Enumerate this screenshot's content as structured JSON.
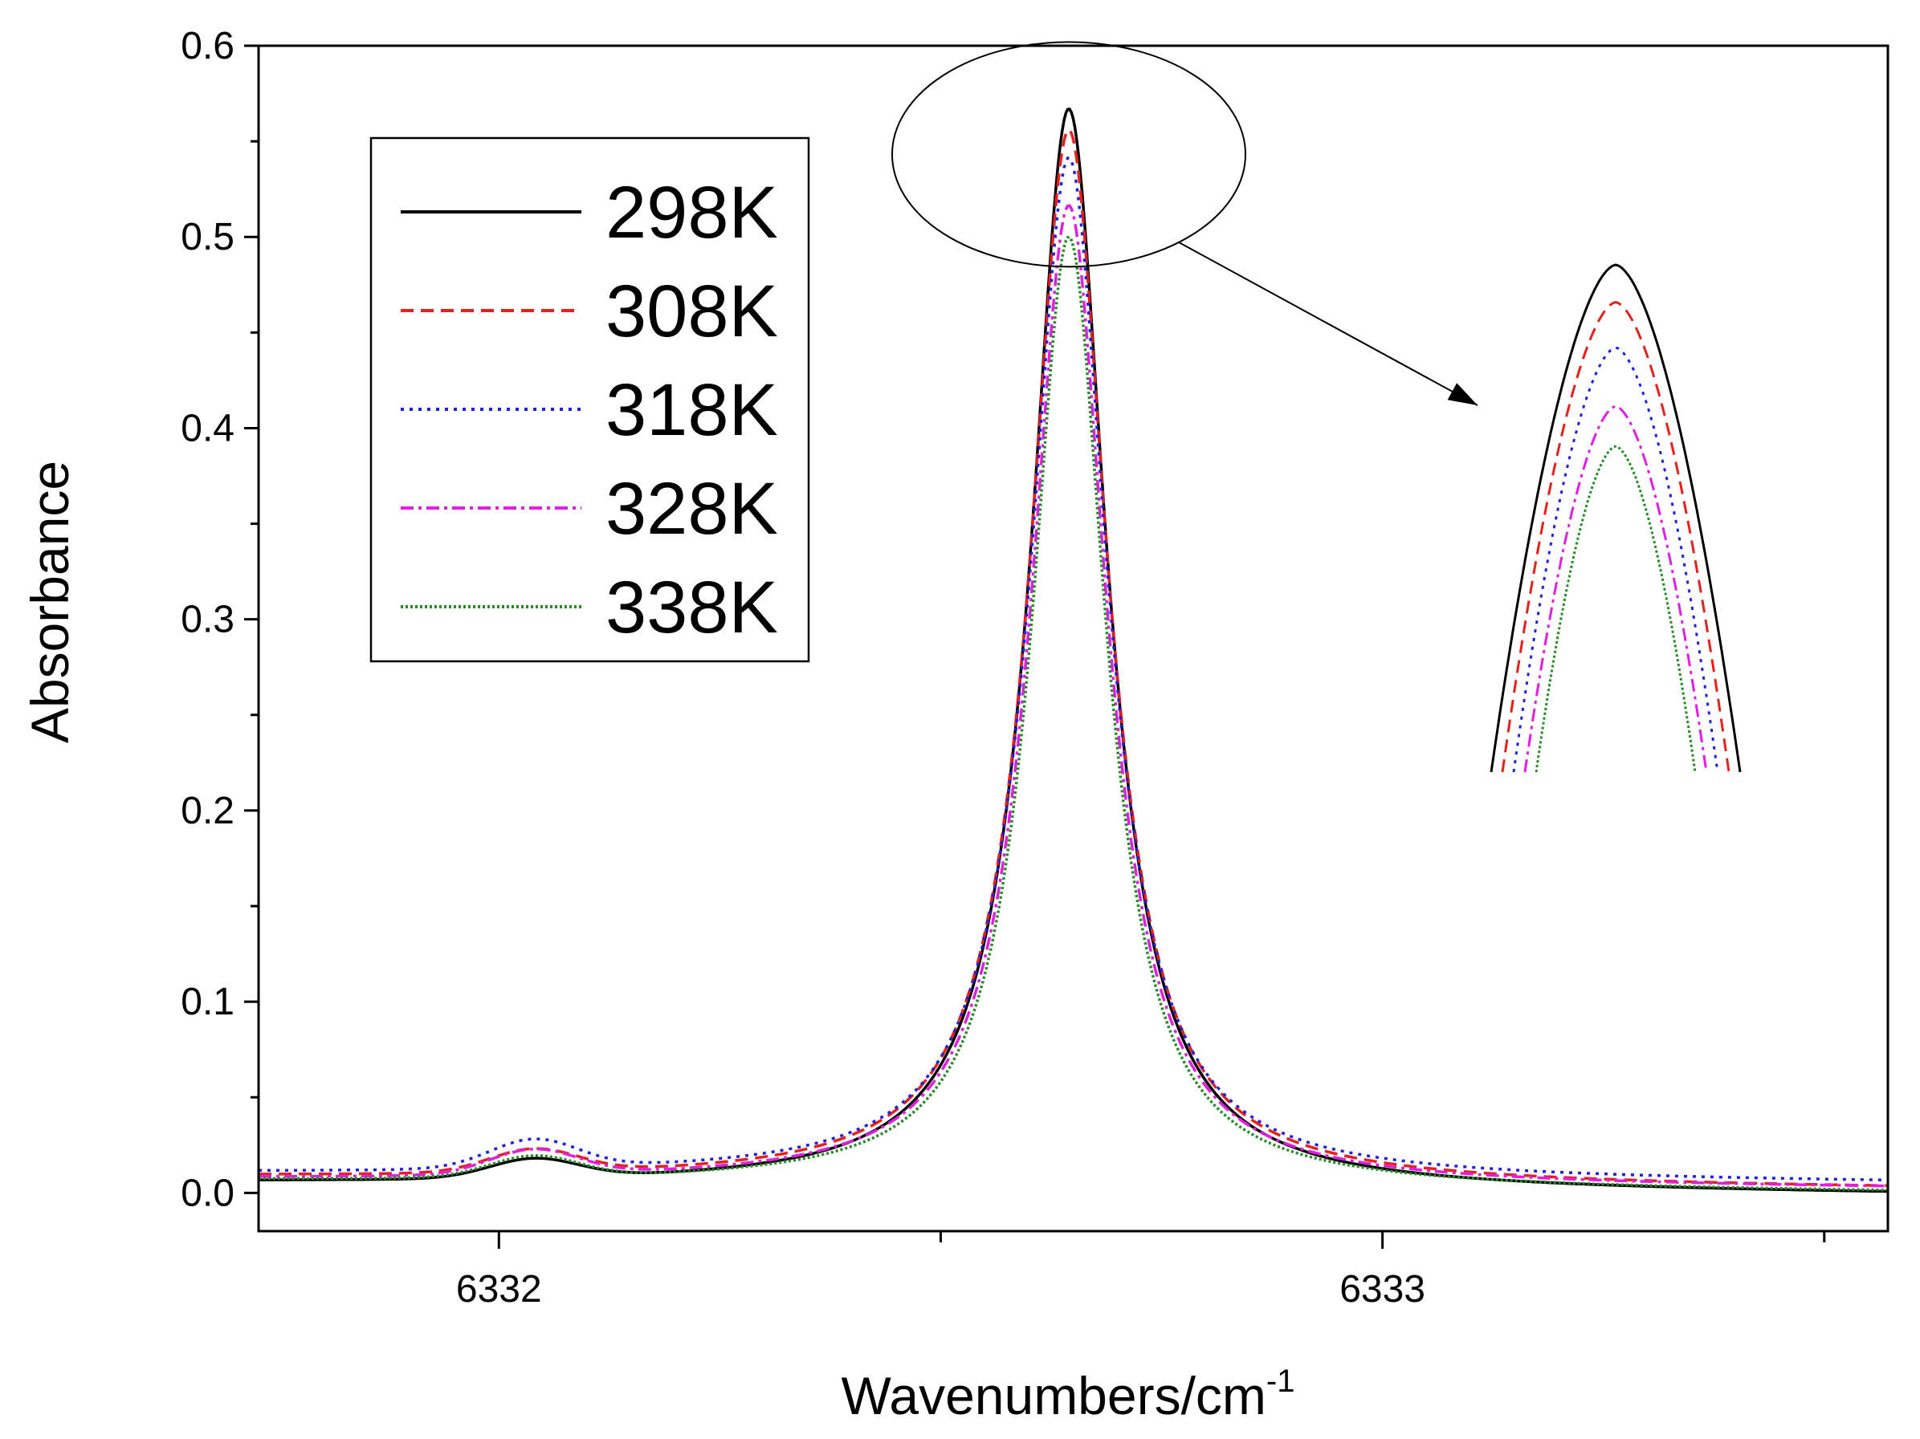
{
  "chart_data": {
    "type": "line",
    "title": "",
    "xlabel": "Wavenumbers/cm",
    "xlabel_superscript": "-1",
    "ylabel": "Absorbance",
    "xlim": [
      6331.728,
      6333.572
    ],
    "ylim": [
      -0.02,
      0.6
    ],
    "x_ticks": [
      6332,
      6333
    ],
    "x_tick_labels": [
      "6332",
      "6333"
    ],
    "x_minor_ticks": [
      6332.5,
      6333.5
    ],
    "y_ticks": [
      0.0,
      0.1,
      0.2,
      0.3,
      0.4,
      0.5,
      0.6
    ],
    "y_tick_labels": [
      "0.0",
      "0.1",
      "0.2",
      "0.3",
      "0.4",
      "0.5",
      "0.6"
    ],
    "grid": false,
    "legend_position": "top-left",
    "peak_center": 6332.645,
    "small_peak_center": 6332.04,
    "series": [
      {
        "name": "298K",
        "color": "#000000",
        "style": "solid",
        "peak": 0.565,
        "hwhm": 0.052,
        "small_peak": 0.01,
        "baseline_left": 0.005,
        "baseline_right": -0.001
      },
      {
        "name": "308K",
        "color": "#e8201c",
        "style": "dash",
        "peak": 0.551,
        "hwhm": 0.053,
        "small_peak": 0.012,
        "baseline_left": 0.008,
        "baseline_right": 0.002
      },
      {
        "name": "318K",
        "color": "#2020e0",
        "style": "dot",
        "peak": 0.534,
        "hwhm": 0.053,
        "small_peak": 0.015,
        "baseline_left": 0.01,
        "baseline_right": 0.005
      },
      {
        "name": "328K",
        "color": "#e020e0",
        "style": "dashdot",
        "peak": 0.512,
        "hwhm": 0.052,
        "small_peak": 0.013,
        "baseline_left": 0.007,
        "baseline_right": 0.002
      },
      {
        "name": "338K",
        "color": "#228b22",
        "style": "shortdot",
        "peak": 0.497,
        "hwhm": 0.051,
        "small_peak": 0.011,
        "baseline_left": 0.006,
        "baseline_right": 0.0
      }
    ],
    "annotations": [
      {
        "type": "ellipse",
        "label": "zoom-region",
        "around": "peak"
      },
      {
        "type": "arrow",
        "label": "zoom-arrow"
      },
      {
        "type": "inset",
        "label": "peak-zoom-inset"
      }
    ]
  }
}
